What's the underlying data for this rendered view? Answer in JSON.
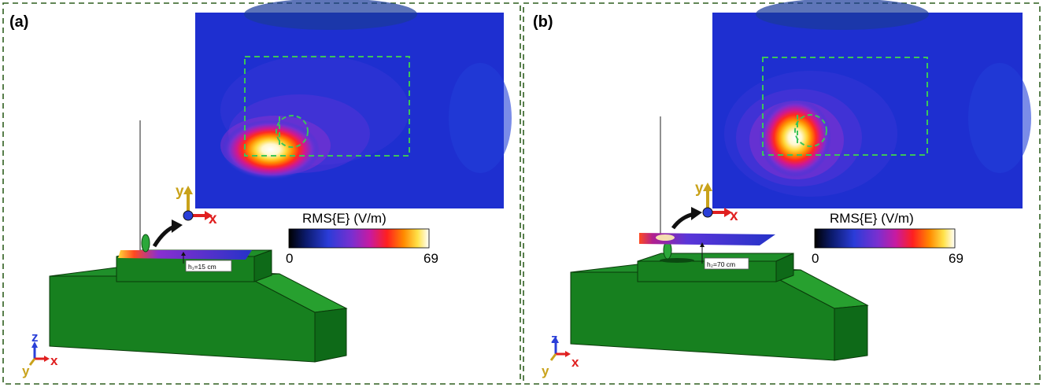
{
  "panels": [
    {
      "id": "a",
      "label": "(a)",
      "colorbar": {
        "title": "RMS{E} (V/m)",
        "min": "0",
        "max": "69"
      },
      "height_label": "h₁=15 cm",
      "axes_main": {
        "x": "x",
        "y": "y"
      },
      "axes_corner": {
        "x": "x",
        "y": "y",
        "z": "z"
      }
    },
    {
      "id": "b",
      "label": "(b)",
      "colorbar": {
        "title": "RMS{E} (V/m)",
        "min": "0",
        "max": "69"
      },
      "height_label": "h₂=70 cm",
      "axes_main": {
        "x": "x",
        "y": "y"
      },
      "axes_corner": {
        "x": "x",
        "y": "y",
        "z": "z"
      }
    }
  ],
  "colors": {
    "frame": "#2f5f1f",
    "highlight": "#3cc45a",
    "vehicle_top": "#1f8f2a",
    "vehicle_front": "#17801f",
    "vehicle_side": "#0e6a18",
    "field_bg": "#1e2fd0",
    "axis_x": "#e02020",
    "axis_y": "#c9a21a",
    "axis_z": "#2a3fd8"
  }
}
